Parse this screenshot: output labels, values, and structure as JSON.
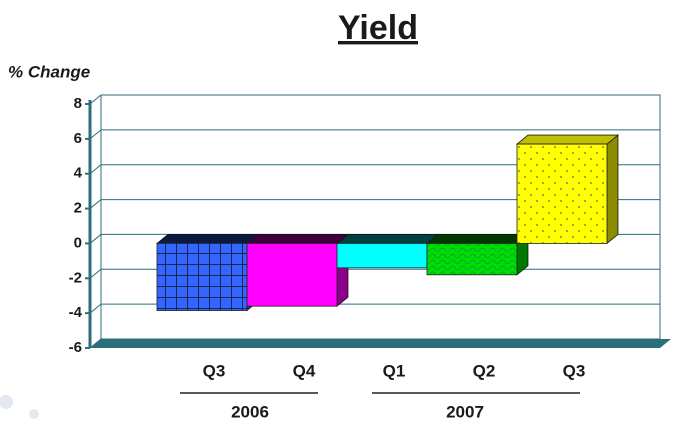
{
  "chart_data": {
    "type": "bar3d",
    "title": "Yield",
    "y_label": "% Change",
    "categories": [
      "Q3",
      "Q4",
      "Q1",
      "Q2",
      "Q3"
    ],
    "group_labels": [
      "2006",
      "2007"
    ],
    "values": [
      -3.85,
      -3.6,
      -1.4,
      -1.8,
      5.7
    ],
    "colors": [
      "#3366ff",
      "#ff00ff",
      "#00ffff",
      "#00dd00",
      "#ffff00"
    ],
    "ylim": [
      -6,
      8
    ],
    "yticks": [
      -6,
      -4,
      -2,
      0,
      2,
      4,
      6,
      8
    ],
    "grid": true
  }
}
